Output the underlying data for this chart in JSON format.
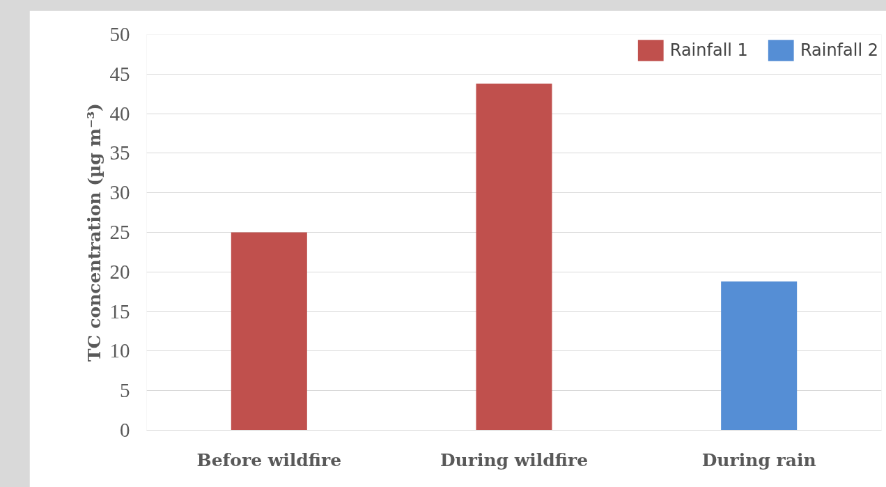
{
  "chart_data": {
    "type": "bar",
    "ylabel": "TC concentration (µg m⁻³)",
    "categories": [
      "Before wildfire",
      "During wildfire",
      "During rain"
    ],
    "series": [
      {
        "name": "Rainfall 1",
        "color": "#c0504d",
        "values": [
          25,
          43.8,
          null
        ]
      },
      {
        "name": "Rainfall 2",
        "color": "#558ed5",
        "values": [
          null,
          null,
          18.8
        ]
      }
    ],
    "ylim": [
      0,
      50
    ],
    "yticks": [
      0,
      5,
      10,
      15,
      20,
      25,
      30,
      35,
      40,
      45,
      50
    ],
    "grid": "y",
    "legend": "top right"
  }
}
